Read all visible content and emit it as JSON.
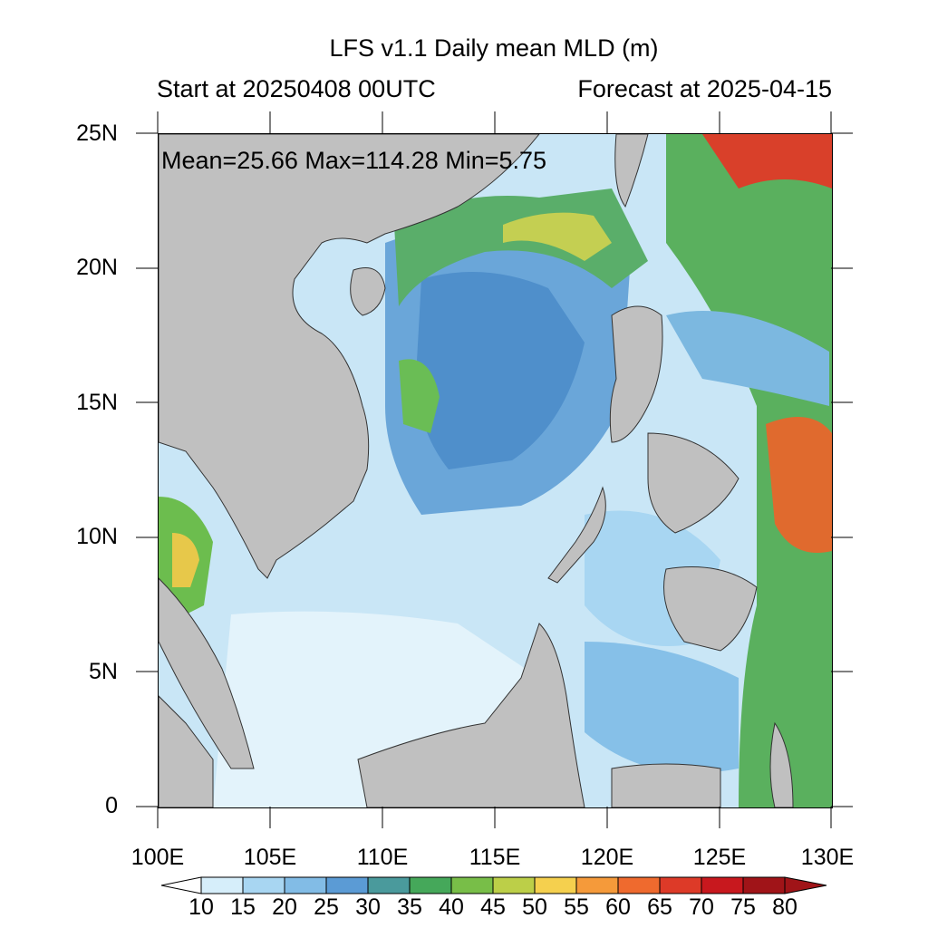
{
  "title": "LFS v1.1 Daily mean MLD (m)",
  "subtitle_left": "Start at 20250408 00UTC",
  "subtitle_right": "Forecast at 2025-04-15",
  "stats": "Mean=25.66  Max=114.28  Min=5.75",
  "axes": {
    "lat_ticks": [
      "25N",
      "20N",
      "15N",
      "10N",
      "5N",
      "0"
    ],
    "lon_ticks": [
      "100E",
      "105E",
      "110E",
      "115E",
      "120E",
      "125E",
      "130E"
    ]
  },
  "colorbar": {
    "labels": [
      "10",
      "15",
      "20",
      "25",
      "30",
      "35",
      "40",
      "45",
      "50",
      "55",
      "60",
      "65",
      "70",
      "75",
      "80"
    ],
    "colors": [
      "#ffffff",
      "#d6eefa",
      "#a8d6f2",
      "#82bce6",
      "#5b9bd5",
      "#4a9a9c",
      "#45a85a",
      "#78be48",
      "#bccf48",
      "#f5d04e",
      "#f59a3a",
      "#ef6a2e",
      "#dd3a28",
      "#c8181e",
      "#a01418",
      "#a01418"
    ]
  },
  "map": {
    "land_color": "#c0c0c0",
    "lon_range": [
      100,
      130
    ],
    "lat_range": [
      0,
      25
    ],
    "regions": [
      "Vietnam coast",
      "Hainan",
      "Taiwan",
      "Luzon",
      "Philippine Islands",
      "Borneo",
      "Malay Peninsula",
      "Sumatra",
      "Mindanao"
    ]
  }
}
